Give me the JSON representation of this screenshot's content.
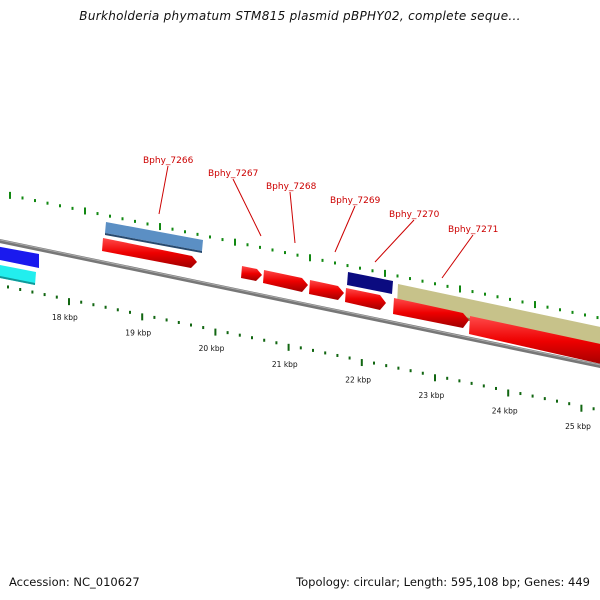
{
  "title": "Burkholderia phymatum STM815 plasmid pBPHY02, complete seque...",
  "footer": {
    "accession": "Accession: NC_010627",
    "summary": "Topology: circular; Length: 595,108 bp; Genes: 449"
  },
  "ticks": [
    {
      "label": "18 kbp",
      "kbp": 18
    },
    {
      "label": "19 kbp",
      "kbp": 19
    },
    {
      "label": "20 kbp",
      "kbp": 20
    },
    {
      "label": "21 kbp",
      "kbp": 21
    },
    {
      "label": "22 kbp",
      "kbp": 22
    },
    {
      "label": "23 kbp",
      "kbp": 23
    },
    {
      "label": "24 kbp",
      "kbp": 24
    },
    {
      "label": "25 kbp",
      "kbp": 25
    }
  ],
  "gene_labels": [
    "Bphy_7266",
    "Bphy_7267",
    "Bphy_7268",
    "Bphy_7269",
    "Bphy_7270",
    "Bphy_7271"
  ],
  "colors": {
    "backbone": "#777777",
    "cds": "#ee0000",
    "outer_tick": "#118811",
    "inner_tick": "#116611",
    "label": "#cc0000",
    "feature_blue": "#1a1aee",
    "feature_cyan": "#22eeee",
    "feature_steelblue": "#5b8fc4",
    "feature_navy": "#0b0b80",
    "feature_khaki": "#c7c28a"
  }
}
